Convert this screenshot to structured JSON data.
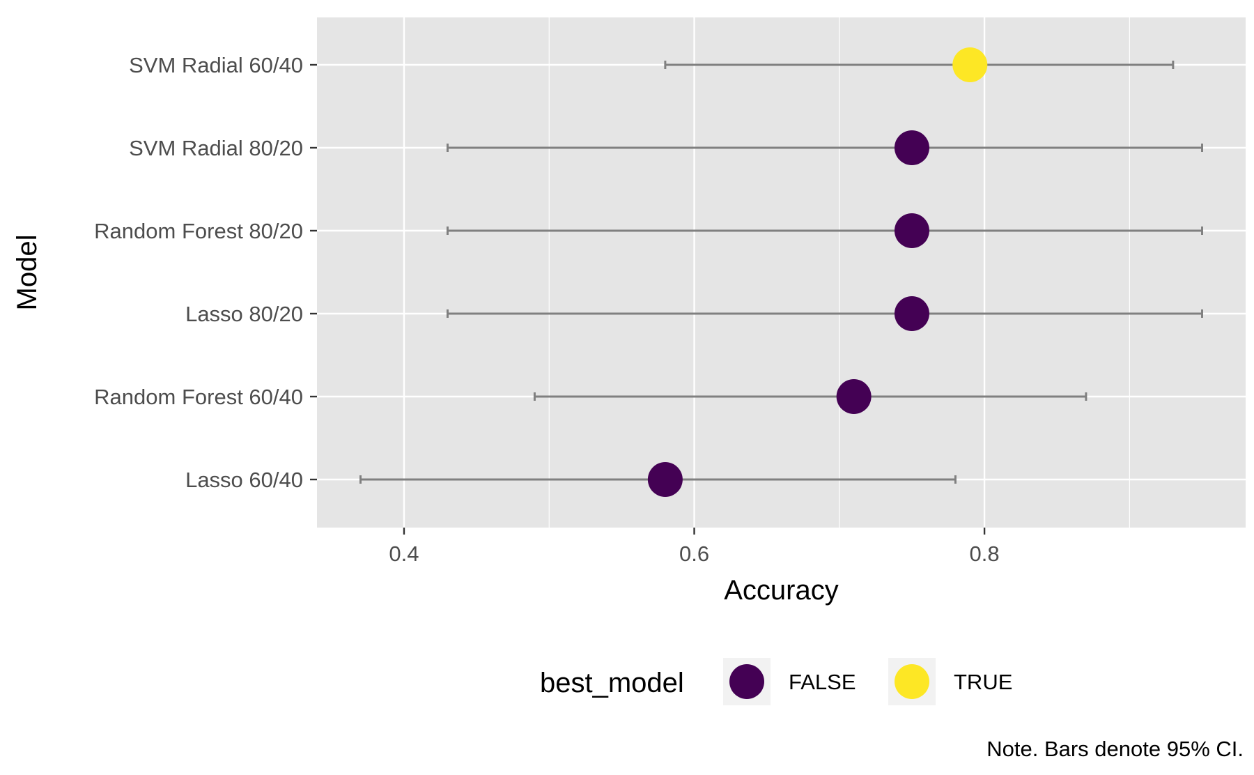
{
  "chart_data": {
    "type": "scatter",
    "xlabel": "Accuracy",
    "ylabel": "Model",
    "xlim": [
      0.34,
      0.98
    ],
    "x_ticks": [
      0.4,
      0.6,
      0.8
    ],
    "x_tick_labels": [
      "0.4",
      "0.6",
      "0.8"
    ],
    "grid": true,
    "legend_position": "bottom",
    "legend": {
      "title": "best_model",
      "items": [
        {
          "label": "FALSE",
          "color": "#440154"
        },
        {
          "label": "TRUE",
          "color": "#FDE725"
        }
      ]
    },
    "caption": "Note. Bars denote 95% CI.",
    "points": [
      {
        "model": "SVM Radial 60/40",
        "accuracy": 0.79,
        "ci_low": 0.58,
        "ci_high": 0.93,
        "best_model": "TRUE"
      },
      {
        "model": "SVM Radial 80/20",
        "accuracy": 0.75,
        "ci_low": 0.43,
        "ci_high": 0.95,
        "best_model": "FALSE"
      },
      {
        "model": "Random Forest 80/20",
        "accuracy": 0.75,
        "ci_low": 0.43,
        "ci_high": 0.95,
        "best_model": "FALSE"
      },
      {
        "model": "Lasso 80/20",
        "accuracy": 0.75,
        "ci_low": 0.43,
        "ci_high": 0.95,
        "best_model": "FALSE"
      },
      {
        "model": "Random Forest 60/40",
        "accuracy": 0.71,
        "ci_low": 0.49,
        "ci_high": 0.87,
        "best_model": "FALSE"
      },
      {
        "model": "Lasso 60/40",
        "accuracy": 0.58,
        "ci_low": 0.37,
        "ci_high": 0.78,
        "best_model": "FALSE"
      }
    ],
    "colors": {
      "panel_background": "#E5E5E5",
      "grid": "#FFFFFF",
      "errorbar": "#808080",
      "tick": "#333333",
      "legend_key_background": "#F2F2F2"
    }
  }
}
